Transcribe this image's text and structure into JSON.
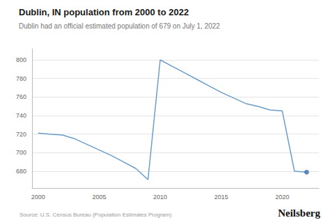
{
  "chart_data": {
    "type": "line",
    "title": "Dublin, IN population from 2000 to 2022",
    "subtitle": "Dublin had an official estimated population of 679 on July 1, 2022",
    "annotations": [
      "Source: U.S. Census Bureau (Population Estimates Program)",
      "Neilsberg"
    ],
    "x": [
      2000,
      2001,
      2002,
      2003,
      2004,
      2005,
      2006,
      2007,
      2008,
      2009,
      2010,
      2011,
      2012,
      2013,
      2014,
      2015,
      2016,
      2017,
      2018,
      2019,
      2020,
      2021,
      2022
    ],
    "series": [
      {
        "type": "line",
        "color": "#6a9dc8",
        "values": [
          721,
          720,
          719,
          715,
          709,
          703,
          697,
          690,
          683,
          671,
          800,
          793,
          786,
          779,
          772,
          765,
          759,
          753,
          750,
          746,
          745,
          680,
          679
        ]
      },
      {
        "type": "scatter",
        "color": "#3a72b0",
        "x": [
          2022
        ],
        "values": [
          679
        ]
      }
    ],
    "xlim": [
      1999.5,
      2023.0
    ],
    "xticks": [
      2000,
      2005,
      2010,
      2015,
      2020
    ],
    "ylim": [
      662,
      812
    ],
    "yticks": [
      680,
      700,
      720,
      740,
      760,
      780,
      800
    ],
    "grid": "y"
  }
}
